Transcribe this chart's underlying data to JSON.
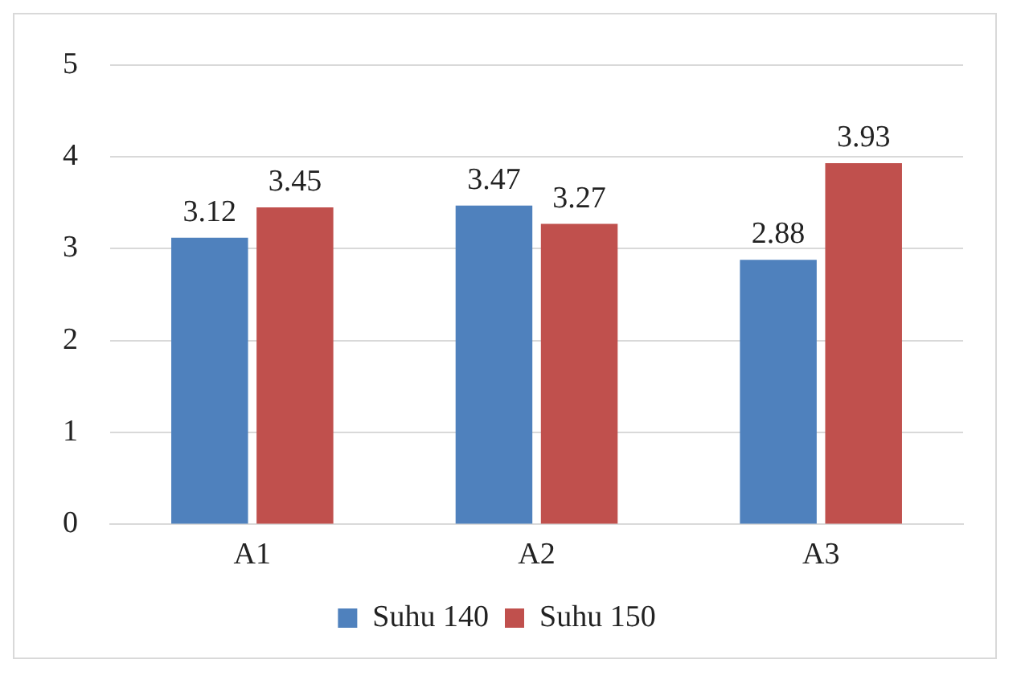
{
  "chart_data": {
    "type": "bar",
    "categories": [
      "A1",
      "A2",
      "A3"
    ],
    "series": [
      {
        "name": "Suhu 140",
        "color": "#4f81bd",
        "values": [
          3.12,
          3.47,
          2.88
        ]
      },
      {
        "name": "Suhu 150",
        "color": "#c0504d",
        "values": [
          3.45,
          3.27,
          3.93
        ]
      }
    ],
    "ylim": [
      0,
      5
    ],
    "yticks": [
      0,
      1,
      2,
      3,
      4,
      5
    ],
    "grid": "y",
    "legend": "bottom",
    "data_labels": true
  }
}
